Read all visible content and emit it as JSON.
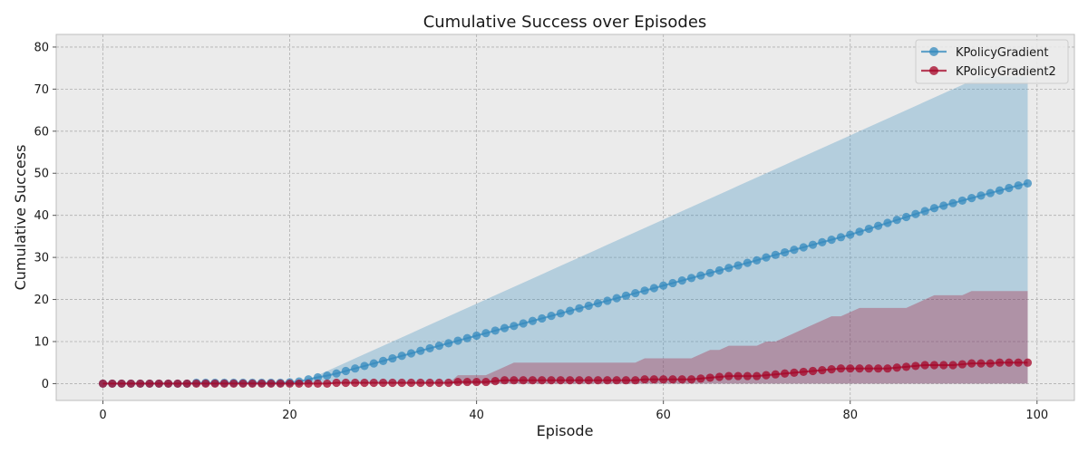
{
  "chart_data": {
    "type": "line",
    "title": "Cumulative Success over Episodes",
    "xlabel": "Episode",
    "ylabel": "Cumulative Success",
    "xlim": [
      -5,
      104
    ],
    "ylim": [
      -4,
      83
    ],
    "xticks": [
      0,
      20,
      40,
      60,
      80,
      100
    ],
    "yticks": [
      0,
      10,
      20,
      30,
      40,
      50,
      60,
      70,
      80
    ],
    "grid": true,
    "legend_position": "top-right",
    "x": [
      0,
      1,
      2,
      3,
      4,
      5,
      6,
      7,
      8,
      9,
      10,
      11,
      12,
      13,
      14,
      15,
      16,
      17,
      18,
      19,
      20,
      21,
      22,
      23,
      24,
      25,
      26,
      27,
      28,
      29,
      30,
      31,
      32,
      33,
      34,
      35,
      36,
      37,
      38,
      39,
      40,
      41,
      42,
      43,
      44,
      45,
      46,
      47,
      48,
      49,
      50,
      51,
      52,
      53,
      54,
      55,
      56,
      57,
      58,
      59,
      60,
      61,
      62,
      63,
      64,
      65,
      66,
      67,
      68,
      69,
      70,
      71,
      72,
      73,
      74,
      75,
      76,
      77,
      78,
      79,
      80,
      81,
      82,
      83,
      84,
      85,
      86,
      87,
      88,
      89,
      90,
      91,
      92,
      93,
      94,
      95,
      96,
      97,
      98,
      99
    ],
    "series": [
      {
        "name": "KPolicyGradient",
        "color": "#348abd",
        "values": [
          0,
          0,
          0,
          0,
          0,
          0,
          0,
          0,
          0,
          0,
          0.2,
          0.2,
          0.2,
          0.2,
          0.2,
          0.2,
          0.2,
          0.2,
          0.2,
          0.2,
          0.3,
          0.5,
          1.0,
          1.5,
          1.9,
          2.4,
          3.0,
          3.6,
          4.2,
          4.8,
          5.4,
          6.0,
          6.6,
          7.2,
          7.8,
          8.4,
          9.0,
          9.6,
          10.2,
          10.8,
          11.4,
          12.0,
          12.6,
          13.2,
          13.7,
          14.3,
          14.9,
          15.5,
          16.1,
          16.7,
          17.3,
          17.9,
          18.5,
          19.1,
          19.7,
          20.3,
          20.9,
          21.5,
          22.1,
          22.7,
          23.3,
          23.9,
          24.5,
          25.1,
          25.7,
          26.3,
          26.9,
          27.5,
          28.1,
          28.7,
          29.3,
          30.0,
          30.6,
          31.2,
          31.8,
          32.4,
          33.0,
          33.6,
          34.2,
          34.8,
          35.4,
          36.1,
          36.8,
          37.5,
          38.2,
          38.9,
          39.6,
          40.3,
          41.0,
          41.7,
          42.3,
          42.9,
          43.5,
          44.1,
          44.7,
          45.3,
          45.9,
          46.5,
          47.1,
          47.6
        ],
        "band_lower": [
          0,
          0,
          0,
          0,
          0,
          0,
          0,
          0,
          0,
          0,
          0,
          0,
          0,
          0,
          0,
          0,
          0,
          0,
          0,
          0,
          0,
          0,
          0,
          0,
          0,
          0,
          0,
          0,
          0,
          0,
          0,
          0,
          0,
          0,
          0,
          0,
          0,
          0,
          0,
          0,
          0,
          0,
          0,
          0,
          0,
          0,
          0,
          0,
          0,
          0,
          0,
          0,
          0,
          0,
          0,
          0,
          0,
          0,
          0,
          0,
          0,
          0,
          0,
          0,
          0,
          0,
          0,
          0,
          0,
          0,
          0,
          0,
          0,
          0,
          0,
          0,
          0,
          0,
          0,
          0,
          0,
          0,
          0,
          0,
          0,
          0,
          0,
          0,
          0,
          0,
          0,
          0,
          0,
          0,
          0,
          0,
          0,
          0,
          0,
          0
        ],
        "band_upper": [
          0,
          0,
          0,
          0,
          0,
          0,
          0,
          0,
          0,
          0,
          0,
          0,
          0,
          0,
          0,
          0,
          0,
          0,
          0,
          0,
          0,
          0,
          1,
          2,
          3,
          4,
          5,
          6,
          7,
          8,
          9,
          10,
          11,
          12,
          13,
          14,
          15,
          16,
          17,
          18,
          19,
          20,
          21,
          22,
          23,
          24,
          25,
          26,
          27,
          28,
          29,
          30,
          31,
          32,
          33,
          34,
          35,
          36,
          37,
          38,
          39,
          40,
          41,
          42,
          43,
          44,
          45,
          46,
          47,
          48,
          49,
          50,
          51,
          52,
          53,
          54,
          55,
          56,
          57,
          58,
          59,
          60,
          61,
          62,
          63,
          64,
          65,
          66,
          67,
          68,
          69,
          70,
          71,
          72,
          73,
          73,
          73,
          73,
          73,
          73
        ]
      },
      {
        "name": "KPolicyGradient2",
        "color": "#a60628",
        "values": [
          0,
          0,
          0,
          0,
          0,
          0,
          0,
          0,
          0,
          0,
          0,
          0,
          0,
          0,
          0,
          0,
          0,
          0,
          0,
          0,
          0,
          0,
          0,
          0,
          0,
          0.2,
          0.2,
          0.2,
          0.2,
          0.2,
          0.2,
          0.2,
          0.2,
          0.2,
          0.2,
          0.2,
          0.2,
          0.2,
          0.4,
          0.4,
          0.4,
          0.4,
          0.6,
          0.8,
          0.8,
          0.8,
          0.8,
          0.8,
          0.8,
          0.8,
          0.8,
          0.8,
          0.8,
          0.8,
          0.8,
          0.8,
          0.8,
          0.8,
          1.0,
          1.0,
          1.0,
          1.0,
          1.0,
          1.0,
          1.2,
          1.4,
          1.6,
          1.8,
          1.8,
          1.8,
          1.8,
          2.0,
          2.2,
          2.4,
          2.6,
          2.8,
          3.0,
          3.2,
          3.4,
          3.6,
          3.6,
          3.6,
          3.6,
          3.6,
          3.6,
          3.8,
          4.0,
          4.2,
          4.4,
          4.4,
          4.4,
          4.4,
          4.6,
          4.8,
          4.8,
          4.8,
          5.0,
          5.0,
          5.0,
          5.0
        ],
        "band_lower": [
          0,
          0,
          0,
          0,
          0,
          0,
          0,
          0,
          0,
          0,
          0,
          0,
          0,
          0,
          0,
          0,
          0,
          0,
          0,
          0,
          0,
          0,
          0,
          0,
          0,
          0,
          0,
          0,
          0,
          0,
          0,
          0,
          0,
          0,
          0,
          0,
          0,
          0,
          0,
          0,
          0,
          0,
          0,
          0,
          0,
          0,
          0,
          0,
          0,
          0,
          0,
          0,
          0,
          0,
          0,
          0,
          0,
          0,
          0,
          0,
          0,
          0,
          0,
          0,
          0,
          0,
          0,
          0,
          0,
          0,
          0,
          0,
          0,
          0,
          0,
          0,
          0,
          0,
          0,
          0,
          0,
          0,
          0,
          0,
          0,
          0,
          0,
          0,
          0,
          0,
          0,
          0,
          0,
          0,
          0,
          0,
          0,
          0,
          0,
          0
        ],
        "band_upper": [
          0,
          0,
          0,
          0,
          0,
          0,
          0,
          0,
          0,
          0,
          0,
          0,
          0,
          0,
          0,
          0,
          0,
          0,
          0,
          0,
          0,
          0,
          0,
          0,
          0,
          0,
          0,
          0,
          0,
          0,
          0,
          0,
          0,
          0,
          0,
          0,
          0,
          0,
          2,
          2,
          2,
          2,
          3,
          4,
          5,
          5,
          5,
          5,
          5,
          5,
          5,
          5,
          5,
          5,
          5,
          5,
          5,
          5,
          6,
          6,
          6,
          6,
          6,
          6,
          7,
          8,
          8,
          9,
          9,
          9,
          9,
          10,
          10,
          11,
          12,
          13,
          14,
          15,
          16,
          16,
          17,
          18,
          18,
          18,
          18,
          18,
          18,
          19,
          20,
          21,
          21,
          21,
          21,
          22,
          22,
          22,
          22,
          22,
          22,
          22
        ]
      }
    ]
  }
}
